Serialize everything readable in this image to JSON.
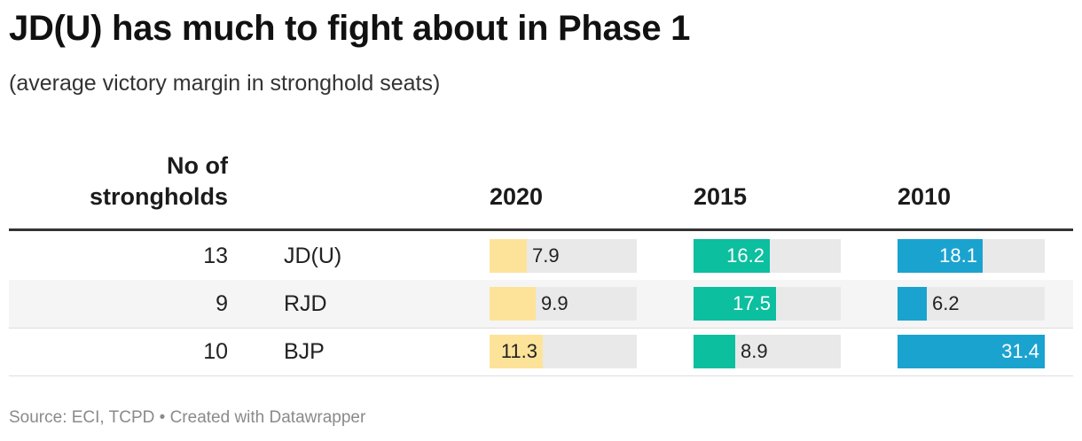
{
  "title": "JD(U) has much to fight about in Phase 1",
  "subtitle": "(average victory margin in stronghold seats)",
  "source": "Source: ECI, TCPD • Created with Datawrapper",
  "colors": {
    "2020": "#fde39a",
    "2015": "#0bbf9f",
    "2010": "#1ba3d0",
    "track": "#e9e9e9"
  },
  "chart_data": {
    "type": "table",
    "columns": {
      "count_header_line1": "No of",
      "count_header_line2": "strongholds",
      "years": [
        "2020",
        "2015",
        "2010"
      ]
    },
    "bar_max": 31.4,
    "rows": [
      {
        "count": "13",
        "party": "JD(U)",
        "values": [
          7.9,
          16.2,
          18.1
        ]
      },
      {
        "count": "9",
        "party": "RJD",
        "values": [
          9.9,
          17.5,
          6.2
        ]
      },
      {
        "count": "10",
        "party": "BJP",
        "values": [
          11.3,
          8.9,
          31.4
        ]
      }
    ]
  }
}
